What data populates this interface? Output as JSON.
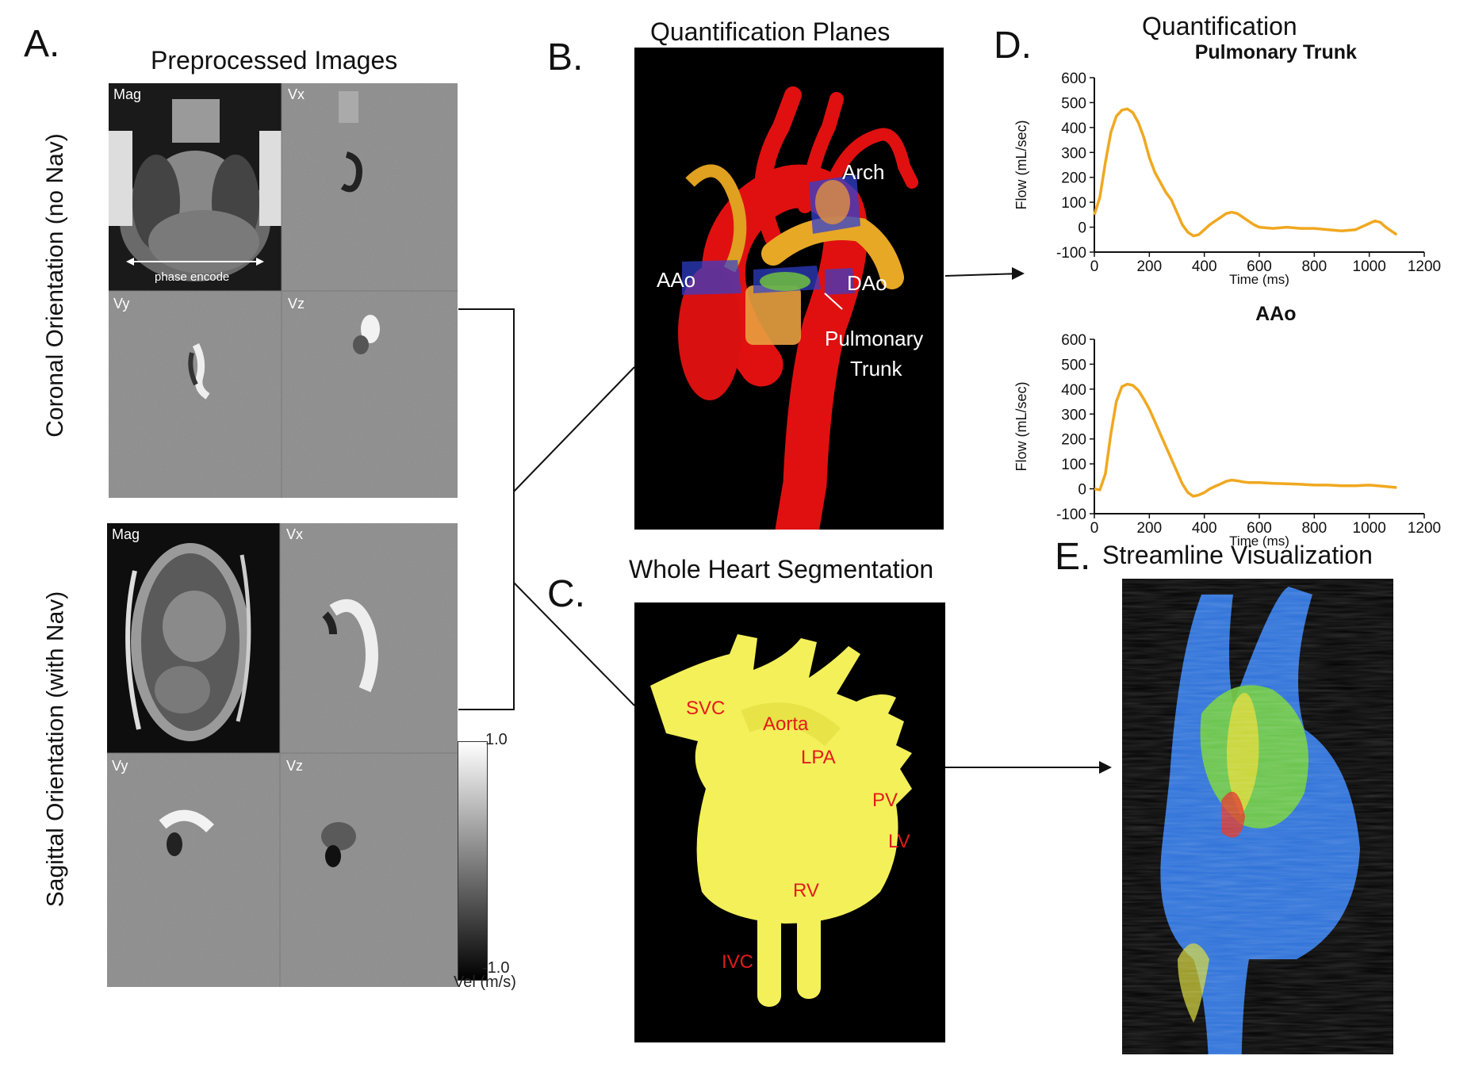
{
  "panels": {
    "a": {
      "letter": "A.",
      "title": "Preprocessed Images",
      "coronal": {
        "orientation_label": "Coronal Orientation (no Nav)",
        "quadrants": [
          "Mag",
          "Vx",
          "Vy",
          "Vz"
        ],
        "phase_encode": "phase encode"
      },
      "sagittal": {
        "orientation_label": "Sagittal Orientation (with Nav)",
        "quadrants": [
          "Mag",
          "Vx",
          "Vy",
          "Vz"
        ]
      },
      "colorbar": {
        "max": "1.0",
        "min": "-1.0",
        "unit": "Vel (m/s)"
      }
    },
    "b": {
      "letter": "B.",
      "title": "Quantification Planes",
      "labels": {
        "arch": "Arch",
        "aao": "AAo",
        "dao": "DAo",
        "pt1": "Pulmonary",
        "pt2": "Trunk"
      }
    },
    "c": {
      "letter": "C.",
      "title": "Whole Heart Segmentation",
      "labels": {
        "svc": "SVC",
        "aorta": "Aorta",
        "lpa": "LPA",
        "pv": "PV",
        "lv": "LV",
        "rv": "RV",
        "ivc": "IVC"
      }
    },
    "d": {
      "letter": "D.",
      "title": "Quantification"
    },
    "e": {
      "letter": "E.",
      "title": "Streamline Visualization"
    }
  },
  "chart_data": [
    {
      "type": "line",
      "title": "Pulmonary Trunk",
      "xlabel": "Time (ms)",
      "ylabel": "Flow (mL/sec)",
      "xlim": [
        0,
        1200
      ],
      "ylim": [
        -100,
        600
      ],
      "xticks": [
        0,
        200,
        400,
        600,
        800,
        1000,
        1200
      ],
      "yticks": [
        -100,
        0,
        100,
        200,
        300,
        400,
        500,
        600
      ],
      "color": "#f0a820",
      "x": [
        0,
        20,
        40,
        60,
        80,
        100,
        120,
        140,
        160,
        180,
        200,
        220,
        240,
        260,
        280,
        300,
        320,
        340,
        360,
        380,
        400,
        420,
        440,
        460,
        480,
        500,
        520,
        540,
        560,
        580,
        600,
        650,
        700,
        750,
        800,
        850,
        900,
        950,
        1000,
        1020,
        1040,
        1060,
        1080,
        1100
      ],
      "y": [
        50,
        120,
        260,
        380,
        445,
        470,
        475,
        460,
        420,
        360,
        280,
        220,
        180,
        140,
        110,
        60,
        10,
        -20,
        -35,
        -30,
        -10,
        10,
        25,
        40,
        55,
        60,
        55,
        40,
        25,
        10,
        0,
        -5,
        0,
        -5,
        -5,
        -10,
        -15,
        -10,
        15,
        25,
        20,
        0,
        -15,
        -30
      ]
    },
    {
      "type": "line",
      "title": "AAo",
      "xlabel": "Time (ms)",
      "ylabel": "Flow (mL/sec)",
      "xlim": [
        0,
        1200
      ],
      "ylim": [
        -100,
        600
      ],
      "xticks": [
        0,
        200,
        400,
        600,
        800,
        1000,
        1200
      ],
      "yticks": [
        -100,
        0,
        100,
        200,
        300,
        400,
        500,
        600
      ],
      "color": "#f0a820",
      "x": [
        0,
        20,
        40,
        60,
        80,
        100,
        120,
        140,
        160,
        180,
        200,
        220,
        240,
        260,
        280,
        300,
        320,
        340,
        360,
        380,
        400,
        420,
        440,
        460,
        480,
        500,
        520,
        540,
        560,
        600,
        650,
        700,
        750,
        800,
        850,
        900,
        950,
        1000,
        1050,
        1100
      ],
      "y": [
        0,
        -5,
        60,
        220,
        350,
        410,
        420,
        415,
        395,
        360,
        320,
        270,
        220,
        170,
        120,
        70,
        20,
        -15,
        -30,
        -25,
        -15,
        0,
        10,
        20,
        30,
        35,
        32,
        28,
        25,
        25,
        22,
        20,
        18,
        15,
        15,
        12,
        12,
        15,
        10,
        5
      ]
    }
  ]
}
